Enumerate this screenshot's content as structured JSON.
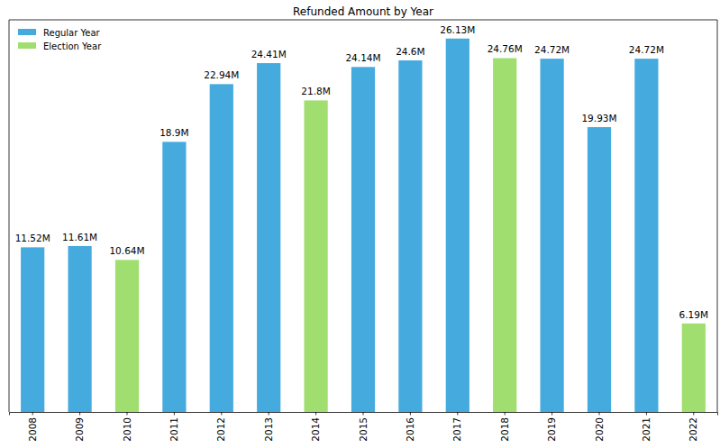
{
  "chart_data": {
    "type": "bar",
    "title": "Refunded Amount by Year",
    "categories": [
      "2008",
      "2009",
      "2010",
      "2011",
      "2012",
      "2013",
      "2014",
      "2015",
      "2016",
      "2017",
      "2018",
      "2019",
      "2020",
      "2021",
      "2022"
    ],
    "series": [
      {
        "name": "Regular Year",
        "color": "#45aade",
        "values": [
          11.52,
          11.61,
          null,
          18.9,
          22.94,
          24.41,
          null,
          24.14,
          24.6,
          26.13,
          null,
          24.72,
          19.93,
          24.72,
          null
        ],
        "value_labels": [
          "11.52M",
          "11.61M",
          null,
          "18.9M",
          "22.94M",
          "24.41M",
          null,
          "24.14M",
          "24.6M",
          "26.13M",
          null,
          "24.72M",
          "19.93M",
          "24.72M",
          null
        ]
      },
      {
        "name": "Election Year",
        "color": "#a0de6f",
        "values": [
          null,
          null,
          10.64,
          null,
          null,
          null,
          21.8,
          null,
          null,
          null,
          24.76,
          null,
          null,
          null,
          6.19
        ],
        "value_labels": [
          null,
          null,
          "10.64M",
          null,
          null,
          null,
          "21.8M",
          null,
          null,
          null,
          "24.76M",
          null,
          null,
          null,
          "6.19M"
        ]
      }
    ],
    "ylim": [
      0,
      27.44
    ],
    "yticks": [],
    "legend": "upper left",
    "data_labels": true,
    "tick_labels": "x",
    "grid": false
  }
}
